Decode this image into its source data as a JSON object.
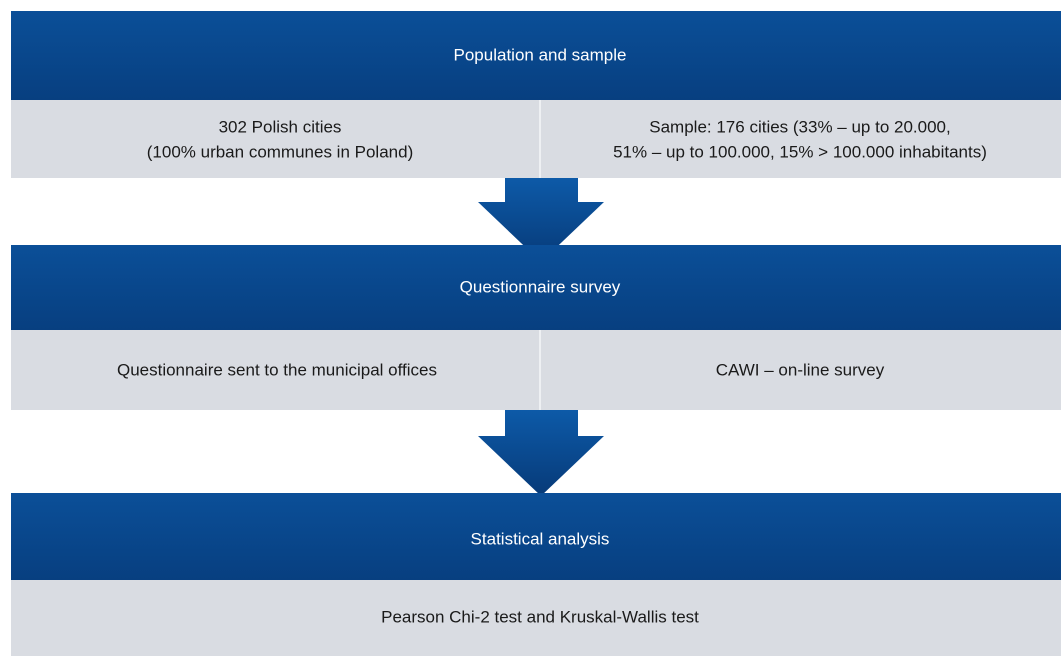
{
  "stages": [
    {
      "header": "Population and sample",
      "cells": [
        [
          "302 Polish cities",
          "(100% urban communes in Poland)"
        ],
        [
          "Sample: 176 cities (33% – up to 20.000,",
          "51% – up to 100.000, 15% > 100.000 inhabitants)"
        ]
      ]
    },
    {
      "header": "Questionnaire survey",
      "cells": [
        [
          "Questionnaire sent to the municipal offices"
        ],
        [
          "CAWI – on-line survey"
        ]
      ]
    },
    {
      "header": "Statistical analysis",
      "cells": [
        [
          "Pearson Chi-2 test and Kruskal-Wallis test"
        ]
      ]
    }
  ]
}
